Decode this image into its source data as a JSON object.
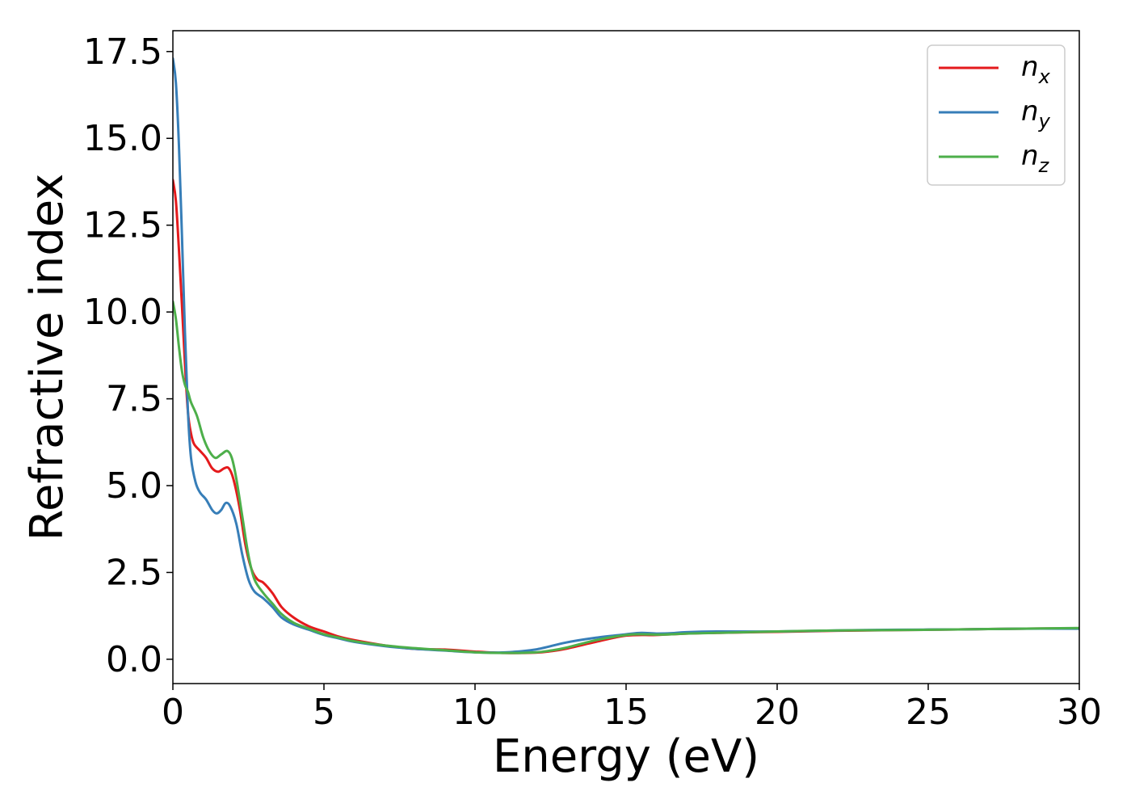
{
  "chart_data": {
    "type": "line",
    "title": "",
    "xlabel": "Energy (eV)",
    "ylabel": "Refractive index",
    "xlim": [
      0,
      30
    ],
    "ylim": [
      -0.7,
      18.1
    ],
    "x_ticks": [
      0,
      5,
      10,
      15,
      20,
      25,
      30
    ],
    "x_tick_labels": [
      "0",
      "5",
      "10",
      "15",
      "20",
      "25",
      "30"
    ],
    "y_ticks": [
      0.0,
      2.5,
      5.0,
      7.5,
      10.0,
      12.5,
      15.0,
      17.5
    ],
    "y_tick_labels": [
      "0.0",
      "2.5",
      "5.0",
      "7.5",
      "10.0",
      "12.5",
      "15.0",
      "17.5"
    ],
    "grid": false,
    "legend_position": "top-right",
    "series": [
      {
        "name": "n",
        "subscript": "x",
        "color": "#e41a1c",
        "points": [
          [
            0,
            13.8
          ],
          [
            0.1,
            13.2
          ],
          [
            0.2,
            11.8
          ],
          [
            0.3,
            10.2
          ],
          [
            0.4,
            8.5
          ],
          [
            0.5,
            7.1
          ],
          [
            0.6,
            6.5
          ],
          [
            0.7,
            6.2
          ],
          [
            0.9,
            6.0
          ],
          [
            1.1,
            5.8
          ],
          [
            1.3,
            5.5
          ],
          [
            1.5,
            5.4
          ],
          [
            1.7,
            5.5
          ],
          [
            1.85,
            5.5
          ],
          [
            2.0,
            5.2
          ],
          [
            2.2,
            4.4
          ],
          [
            2.4,
            3.3
          ],
          [
            2.6,
            2.6
          ],
          [
            2.8,
            2.3
          ],
          [
            3.0,
            2.2
          ],
          [
            3.3,
            1.9
          ],
          [
            3.6,
            1.5
          ],
          [
            4.0,
            1.2
          ],
          [
            4.5,
            0.95
          ],
          [
            5.0,
            0.8
          ],
          [
            5.5,
            0.65
          ],
          [
            6.0,
            0.55
          ],
          [
            7.0,
            0.4
          ],
          [
            8.0,
            0.3
          ],
          [
            9.0,
            0.28
          ],
          [
            10.0,
            0.22
          ],
          [
            11.0,
            0.18
          ],
          [
            12.0,
            0.19
          ],
          [
            12.5,
            0.23
          ],
          [
            13.0,
            0.3
          ],
          [
            14.0,
            0.5
          ],
          [
            15.0,
            0.68
          ],
          [
            16.0,
            0.7
          ],
          [
            17.0,
            0.74
          ],
          [
            18.0,
            0.76
          ],
          [
            20.0,
            0.79
          ],
          [
            22.0,
            0.82
          ],
          [
            24.0,
            0.84
          ],
          [
            26.0,
            0.86
          ],
          [
            28.0,
            0.88
          ],
          [
            30.0,
            0.89
          ]
        ]
      },
      {
        "name": "n",
        "subscript": "y",
        "color": "#377eb8",
        "points": [
          [
            0,
            17.3
          ],
          [
            0.1,
            16.6
          ],
          [
            0.2,
            14.8
          ],
          [
            0.3,
            12.2
          ],
          [
            0.4,
            9.4
          ],
          [
            0.5,
            7.1
          ],
          [
            0.6,
            5.8
          ],
          [
            0.75,
            5.1
          ],
          [
            0.9,
            4.8
          ],
          [
            1.1,
            4.6
          ],
          [
            1.3,
            4.3
          ],
          [
            1.45,
            4.2
          ],
          [
            1.6,
            4.3
          ],
          [
            1.75,
            4.5
          ],
          [
            1.9,
            4.4
          ],
          [
            2.1,
            3.9
          ],
          [
            2.3,
            3.0
          ],
          [
            2.5,
            2.3
          ],
          [
            2.7,
            1.95
          ],
          [
            3.0,
            1.75
          ],
          [
            3.3,
            1.5
          ],
          [
            3.6,
            1.2
          ],
          [
            4.0,
            1.0
          ],
          [
            4.5,
            0.85
          ],
          [
            5.0,
            0.7
          ],
          [
            5.5,
            0.6
          ],
          [
            6.0,
            0.5
          ],
          [
            7.0,
            0.38
          ],
          [
            8.0,
            0.3
          ],
          [
            9.0,
            0.25
          ],
          [
            10.0,
            0.2
          ],
          [
            11.0,
            0.2
          ],
          [
            12.0,
            0.28
          ],
          [
            13.0,
            0.48
          ],
          [
            14.0,
            0.62
          ],
          [
            15.0,
            0.72
          ],
          [
            15.5,
            0.76
          ],
          [
            16.0,
            0.74
          ],
          [
            16.5,
            0.75
          ],
          [
            17.0,
            0.78
          ],
          [
            18.0,
            0.8
          ],
          [
            20.0,
            0.8
          ],
          [
            22.0,
            0.83
          ],
          [
            24.0,
            0.85
          ],
          [
            26.0,
            0.86
          ],
          [
            28.0,
            0.88
          ],
          [
            30.0,
            0.88
          ]
        ]
      },
      {
        "name": "n",
        "subscript": "z",
        "color": "#4daf4a",
        "points": [
          [
            0,
            10.3
          ],
          [
            0.1,
            9.8
          ],
          [
            0.2,
            9.0
          ],
          [
            0.3,
            8.3
          ],
          [
            0.4,
            7.9
          ],
          [
            0.5,
            7.7
          ],
          [
            0.6,
            7.4
          ],
          [
            0.8,
            7.0
          ],
          [
            1.0,
            6.4
          ],
          [
            1.2,
            6.0
          ],
          [
            1.4,
            5.8
          ],
          [
            1.6,
            5.9
          ],
          [
            1.8,
            6.0
          ],
          [
            1.95,
            5.8
          ],
          [
            2.1,
            5.2
          ],
          [
            2.3,
            4.1
          ],
          [
            2.5,
            3.0
          ],
          [
            2.7,
            2.3
          ],
          [
            3.0,
            1.9
          ],
          [
            3.3,
            1.6
          ],
          [
            3.6,
            1.3
          ],
          [
            4.0,
            1.05
          ],
          [
            4.5,
            0.88
          ],
          [
            5.0,
            0.72
          ],
          [
            5.5,
            0.62
          ],
          [
            6.0,
            0.52
          ],
          [
            7.0,
            0.4
          ],
          [
            8.0,
            0.32
          ],
          [
            9.0,
            0.26
          ],
          [
            10.0,
            0.2
          ],
          [
            11.0,
            0.18
          ],
          [
            12.0,
            0.2
          ],
          [
            12.5,
            0.25
          ],
          [
            13.0,
            0.33
          ],
          [
            14.0,
            0.55
          ],
          [
            15.0,
            0.7
          ],
          [
            15.5,
            0.72
          ],
          [
            16.0,
            0.71
          ],
          [
            16.5,
            0.72
          ],
          [
            17.0,
            0.74
          ],
          [
            18.0,
            0.76
          ],
          [
            20.0,
            0.8
          ],
          [
            22.0,
            0.83
          ],
          [
            24.0,
            0.84
          ],
          [
            26.0,
            0.86
          ],
          [
            28.0,
            0.88
          ],
          [
            30.0,
            0.9
          ]
        ]
      }
    ]
  }
}
